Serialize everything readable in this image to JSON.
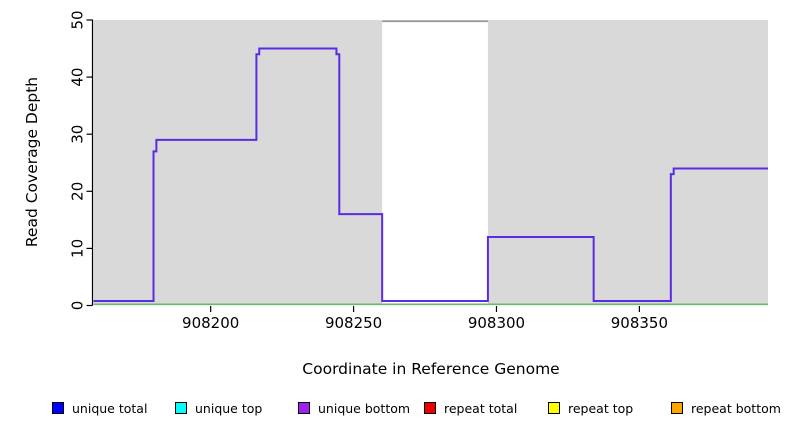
{
  "chart_data": {
    "type": "line",
    "title": "",
    "xlabel": "Coordinate in Reference Genome",
    "ylabel": "Read Coverage Depth",
    "xlim": [
      908159,
      908395
    ],
    "ylim": [
      0,
      50
    ],
    "x_ticks": [
      908200,
      908250,
      908300,
      908350
    ],
    "y_ticks": [
      0,
      10,
      20,
      30,
      40,
      50
    ],
    "grid": false,
    "plot_bg_color": "#d9d9d9",
    "coverage_line_color": "#5b2be4",
    "baseline_color": "#66bb66",
    "coverage_steps": [
      [
        908159,
        0
      ],
      [
        908180,
        27
      ],
      [
        908181,
        29
      ],
      [
        908216,
        44
      ],
      [
        908217,
        45
      ],
      [
        908244,
        44
      ],
      [
        908245,
        16
      ],
      [
        908260,
        0
      ],
      [
        908297,
        12
      ],
      [
        908334,
        0
      ],
      [
        908361,
        23
      ],
      [
        908362,
        24
      ],
      [
        908395,
        24
      ]
    ],
    "repeat_region": {
      "start": 908260,
      "end": 908297,
      "fill": "#ffffff",
      "clipped_line_value": 50,
      "clipped_line_color": "#999999"
    }
  },
  "legend": {
    "position": "bottom",
    "items": [
      {
        "label": "unique total",
        "color": "#0000ff"
      },
      {
        "label": "unique top",
        "color": "#00ffff"
      },
      {
        "label": "unique bottom",
        "color": "#a020f0"
      },
      {
        "label": "repeat total",
        "color": "#ee0000"
      },
      {
        "label": "repeat top",
        "color": "#ffff00"
      },
      {
        "label": "repeat bottom",
        "color": "#ffa500"
      }
    ]
  }
}
